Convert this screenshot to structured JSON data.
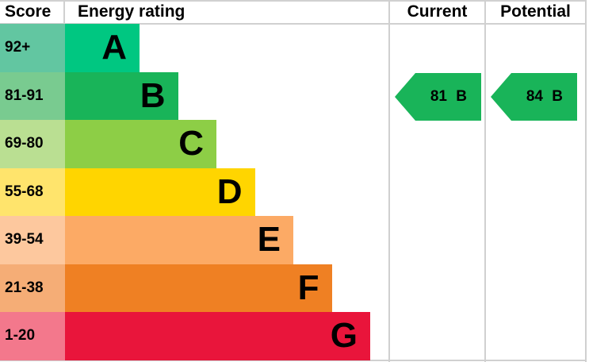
{
  "chart_data": {
    "type": "bar",
    "headers": {
      "score": "Score",
      "rating": "Energy rating",
      "current": "Current",
      "potential": "Potential"
    },
    "bands": [
      {
        "letter": "A",
        "range": "92+",
        "color": "#00c781",
        "score_color": "#62c6a1"
      },
      {
        "letter": "B",
        "range": "81-91",
        "color": "#19b459",
        "score_color": "#79cb90"
      },
      {
        "letter": "C",
        "range": "69-80",
        "color": "#8dce46",
        "score_color": "#badf92"
      },
      {
        "letter": "D",
        "range": "55-68",
        "color": "#ffd500",
        "score_color": "#ffe46c"
      },
      {
        "letter": "E",
        "range": "39-54",
        "color": "#fcaa65",
        "score_color": "#fdc89e"
      },
      {
        "letter": "F",
        "range": "21-38",
        "color": "#ef8023",
        "score_color": "#f5ad76"
      },
      {
        "letter": "G",
        "range": "1-20",
        "color": "#e9153b",
        "score_color": "#f3788c"
      }
    ],
    "current": {
      "value": 81,
      "band": "B",
      "label": "81 B",
      "color": "#19b459"
    },
    "potential": {
      "value": 84,
      "band": "B",
      "label": "84 B",
      "color": "#19b459"
    }
  }
}
